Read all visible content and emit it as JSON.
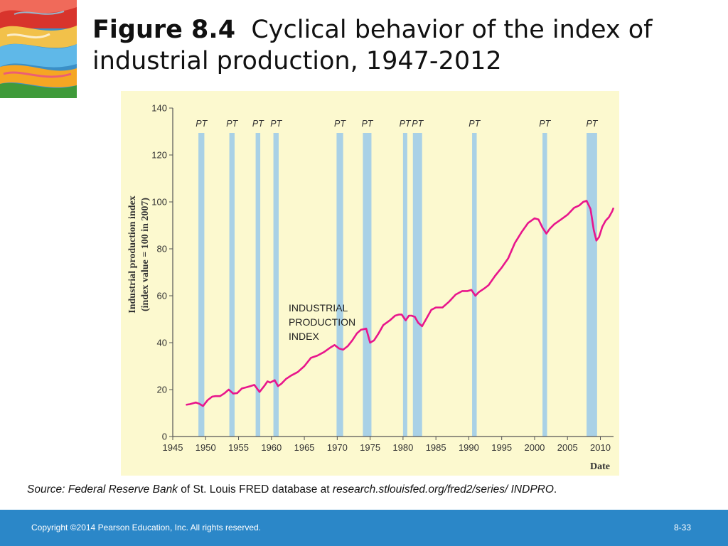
{
  "slide": {
    "title_figure": "Figure 8.4",
    "title_text": "Cyclical behavior of the index of industrial production, 1947-2012",
    "source_prefix": "Source: Federal Reserve Bank",
    "source_mid": " of St. Louis FRED database at ",
    "source_link": "research.stlouisfed.org/fred2/series/ INDPRO",
    "source_suffix": ".",
    "copyright": "Copyright ©2014 Pearson Education, Inc. All rights reserved.",
    "slide_number": "8-33"
  },
  "colors": {
    "line": "#e8168c",
    "recession_band": "#a9d1e6",
    "panel": "#fcf9cf",
    "footer": "#2b87c8"
  },
  "chart_data": {
    "type": "line",
    "ylabel_line1": "Industrial production index",
    "ylabel_line2": "(index value = 100 in 2007)",
    "xlabel": "Date",
    "annotation": [
      "INDUSTRIAL",
      "PRODUCTION",
      "INDEX"
    ],
    "xlim": [
      1945,
      2012
    ],
    "ylim": [
      0,
      140
    ],
    "x_ticks": [
      1945,
      1950,
      1955,
      1960,
      1965,
      1970,
      1975,
      1980,
      1985,
      1990,
      1995,
      2000,
      2005,
      2010
    ],
    "y_ticks": [
      0,
      20,
      40,
      60,
      80,
      100,
      120,
      140
    ],
    "peak_trough_label": "PT",
    "recessions": [
      [
        1948.9,
        1949.8
      ],
      [
        1953.6,
        1954.4
      ],
      [
        1957.6,
        1958.3
      ],
      [
        1960.3,
        1961.1
      ],
      [
        1969.9,
        1970.9
      ],
      [
        1973.9,
        1975.2
      ],
      [
        1980.0,
        1980.6
      ],
      [
        1981.5,
        1982.9
      ],
      [
        1990.5,
        1991.2
      ],
      [
        2001.2,
        2001.9
      ],
      [
        2007.9,
        2009.5
      ]
    ],
    "series": [
      {
        "name": "INDUSTRIAL PRODUCTION INDEX",
        "x": [
          1947,
          1947.6,
          1948.5,
          1949.0,
          1949.6,
          1950.3,
          1951.0,
          1951.5,
          1952.2,
          1952.9,
          1953.5,
          1954.2,
          1954.8,
          1955.5,
          1956.2,
          1956.8,
          1957.4,
          1958.2,
          1958.9,
          1959.4,
          1959.8,
          1960.5,
          1961.0,
          1961.5,
          1962.2,
          1963.0,
          1964.0,
          1965.0,
          1966.0,
          1967.0,
          1968.0,
          1969.0,
          1969.6,
          1970.3,
          1970.9,
          1971.6,
          1972.3,
          1973.0,
          1973.6,
          1974.4,
          1975.0,
          1975.6,
          1976.3,
          1977.0,
          1978.0,
          1978.8,
          1979.4,
          1979.8,
          1980.4,
          1980.9,
          1981.3,
          1981.8,
          1982.3,
          1982.9,
          1983.6,
          1984.3,
          1985.0,
          1986.0,
          1987.0,
          1988.0,
          1989.0,
          1989.8,
          1990.4,
          1991.0,
          1991.5,
          1992.3,
          1993.0,
          1994.0,
          1995.0,
          1996.0,
          1997.0,
          1998.0,
          1999.0,
          2000.0,
          2000.6,
          2001.2,
          2001.8,
          2002.3,
          2003.0,
          2004.0,
          2005.0,
          2006.0,
          2006.8,
          2007.4,
          2007.9,
          2008.5,
          2009.0,
          2009.4,
          2009.8,
          2010.3,
          2010.8,
          2011.3,
          2011.8,
          2012.0
        ],
        "y": [
          13.5,
          13.8,
          14.5,
          14.0,
          13.0,
          15.5,
          17.0,
          17.2,
          17.2,
          18.5,
          20.0,
          18.3,
          18.5,
          20.5,
          21.0,
          21.5,
          22.0,
          19.0,
          21.5,
          23.5,
          23.0,
          24.0,
          21.5,
          22.5,
          24.5,
          26.0,
          27.5,
          30.0,
          33.5,
          34.5,
          36.0,
          38.0,
          39.0,
          37.5,
          37.0,
          38.5,
          41.0,
          44.0,
          45.5,
          46.0,
          40.0,
          41.0,
          44.0,
          47.5,
          49.5,
          51.5,
          52.0,
          52.0,
          49.5,
          51.5,
          51.5,
          51.0,
          48.5,
          47.0,
          50.5,
          54.0,
          55.0,
          55.0,
          57.5,
          60.5,
          62.0,
          62.0,
          62.5,
          60.0,
          61.5,
          63.0,
          64.5,
          68.5,
          72.0,
          76.0,
          82.5,
          87.0,
          91.0,
          93.0,
          92.5,
          89.0,
          86.5,
          88.5,
          90.5,
          92.5,
          94.5,
          97.5,
          98.5,
          100.0,
          100.5,
          97.0,
          88.0,
          83.5,
          85.0,
          89.5,
          92.0,
          93.5,
          96.0,
          97.5
        ]
      }
    ]
  }
}
